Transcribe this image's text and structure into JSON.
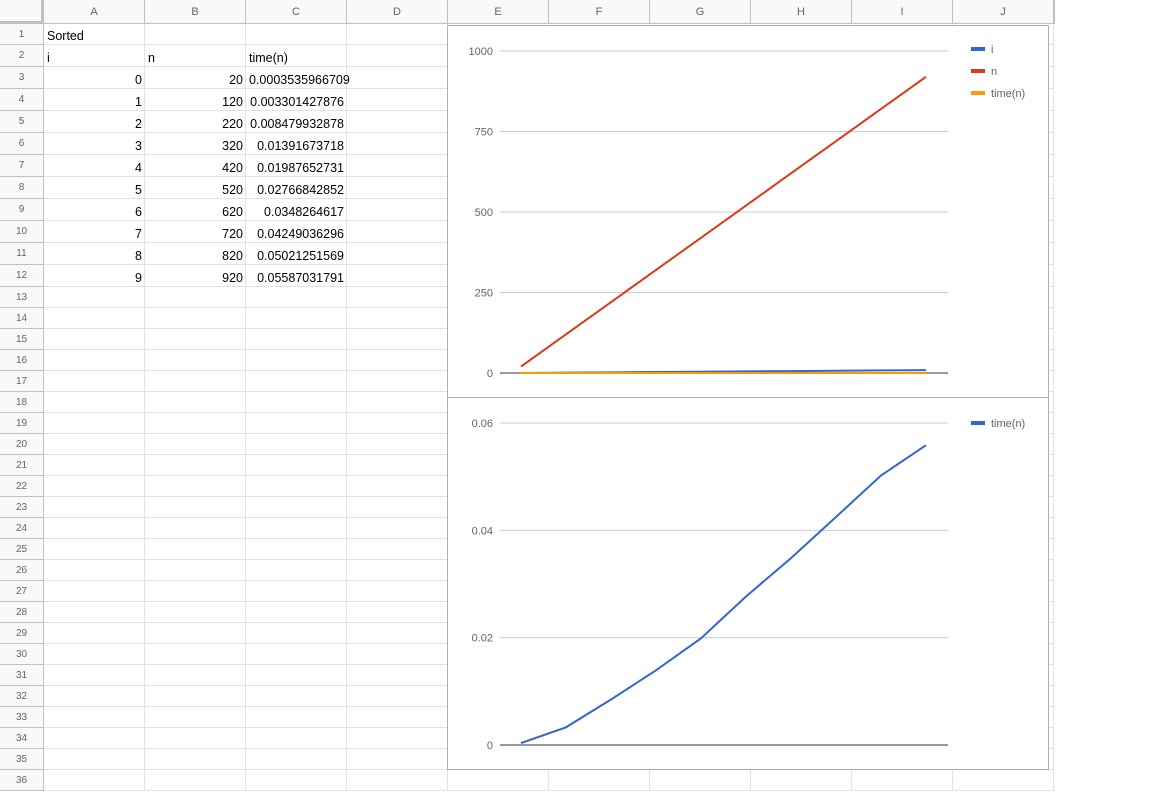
{
  "columns": [
    "A",
    "B",
    "C",
    "D",
    "E",
    "F",
    "G",
    "H",
    "I",
    "J"
  ],
  "rows": [
    "1",
    "2",
    "3",
    "4",
    "5",
    "6",
    "7",
    "8",
    "9",
    "10",
    "11",
    "12",
    "13",
    "14",
    "15",
    "16",
    "17",
    "18",
    "19",
    "20",
    "21",
    "22",
    "23",
    "24",
    "25",
    "26",
    "27",
    "28",
    "29",
    "30",
    "31",
    "32",
    "33",
    "34",
    "35",
    "36"
  ],
  "cells": {
    "title": "Sorted",
    "headers": [
      "i",
      "n",
      "time(n)"
    ],
    "data": [
      [
        "0",
        "20",
        "0.0003535966709"
      ],
      [
        "1",
        "120",
        "0.003301427876"
      ],
      [
        "2",
        "220",
        "0.008479932878"
      ],
      [
        "3",
        "320",
        "0.01391673718"
      ],
      [
        "4",
        "420",
        "0.01987652731"
      ],
      [
        "5",
        "520",
        "0.02766842852"
      ],
      [
        "6",
        "620",
        "0.0348264617"
      ],
      [
        "7",
        "720",
        "0.04249036296"
      ],
      [
        "8",
        "820",
        "0.05021251569"
      ],
      [
        "9",
        "920",
        "0.05587031791"
      ]
    ]
  },
  "chart_data": [
    {
      "type": "line",
      "x": [
        0,
        1,
        2,
        3,
        4,
        5,
        6,
        7,
        8,
        9
      ],
      "series": [
        {
          "name": "i",
          "color": "#3366cc",
          "values": [
            0,
            1,
            2,
            3,
            4,
            5,
            6,
            7,
            8,
            9
          ]
        },
        {
          "name": "n",
          "color": "#dc3912",
          "values": [
            20,
            120,
            220,
            320,
            420,
            520,
            620,
            720,
            820,
            920
          ]
        },
        {
          "name": "time(n)",
          "color": "#ff9900",
          "values": [
            0.0003535966709,
            0.003301427876,
            0.008479932878,
            0.01391673718,
            0.01987652731,
            0.02766842852,
            0.0348264617,
            0.04249036296,
            0.05021251569,
            0.05587031791
          ]
        }
      ],
      "yticks": [
        0,
        250,
        500,
        750,
        1000
      ],
      "ytick_labels": [
        "0",
        "250",
        "500",
        "750",
        "1000"
      ],
      "ylim": [
        0,
        1000
      ],
      "legend": "right",
      "grid": true
    },
    {
      "type": "line",
      "x": [
        0,
        1,
        2,
        3,
        4,
        5,
        6,
        7,
        8,
        9
      ],
      "series": [
        {
          "name": "time(n)",
          "color": "#3366cc",
          "values": [
            0.0003535966709,
            0.003301427876,
            0.008479932878,
            0.01391673718,
            0.01987652731,
            0.02766842852,
            0.0348264617,
            0.04249036296,
            0.05021251569,
            0.05587031791
          ]
        }
      ],
      "yticks": [
        0,
        0.02,
        0.04,
        0.06
      ],
      "ytick_labels": [
        "0",
        "0.02",
        "0.04",
        "0.06"
      ],
      "ylim": [
        0,
        0.06
      ],
      "legend": "right",
      "grid": true
    }
  ]
}
